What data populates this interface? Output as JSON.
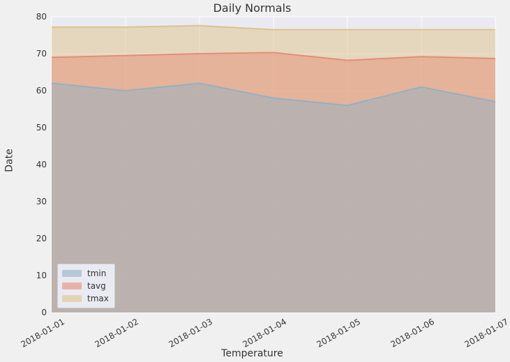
{
  "chart": {
    "type": "area",
    "title": "Daily Normals",
    "title_fontsize": 16,
    "xlabel": "Temperature",
    "ylabel": "Date",
    "label_fontsize": 14,
    "background_color": "#f0f0f0",
    "plot_background_color": "#eaeaf2",
    "grid_color": "#ffffff",
    "grid_linewidth": 1,
    "xlim": [
      0,
      6
    ],
    "ylim": [
      0,
      80
    ],
    "ytick_step": 10,
    "yticks": [
      0,
      10,
      20,
      30,
      40,
      50,
      60,
      70,
      80
    ],
    "xticks": [
      0,
      1,
      2,
      3,
      4,
      5,
      6
    ],
    "xtick_labels": [
      "2018-01-01",
      "2018-01-02",
      "2018-01-03",
      "2018-01-04",
      "2018-01-05",
      "2018-01-06",
      "2018-01-07"
    ],
    "xtick_rotation_deg": -30,
    "tick_fontsize": 12,
    "series": [
      {
        "name": "tmin",
        "color": "#92b1c4",
        "fill_opacity": 0.5,
        "line_width": 2,
        "values": [
          62.0,
          60.0,
          62.0,
          58.0,
          56.0,
          61.0,
          57.0
        ]
      },
      {
        "name": "tavg",
        "color": "#e58d76",
        "fill_opacity": 0.5,
        "line_width": 2,
        "values": [
          69.0,
          69.5,
          70.0,
          70.3,
          68.2,
          69.2,
          68.7
        ]
      },
      {
        "name": "tmax",
        "color": "#ddc38a",
        "fill_opacity": 0.5,
        "line_width": 2,
        "values": [
          77.2,
          77.2,
          77.6,
          76.5,
          76.5,
          76.5,
          76.5
        ]
      }
    ],
    "legend": {
      "position": "lower left",
      "items": [
        {
          "label": "tmin",
          "color": "#92b1c4"
        },
        {
          "label": "tavg",
          "color": "#e58d76"
        },
        {
          "label": "tmax",
          "color": "#ddc38a"
        }
      ]
    }
  }
}
